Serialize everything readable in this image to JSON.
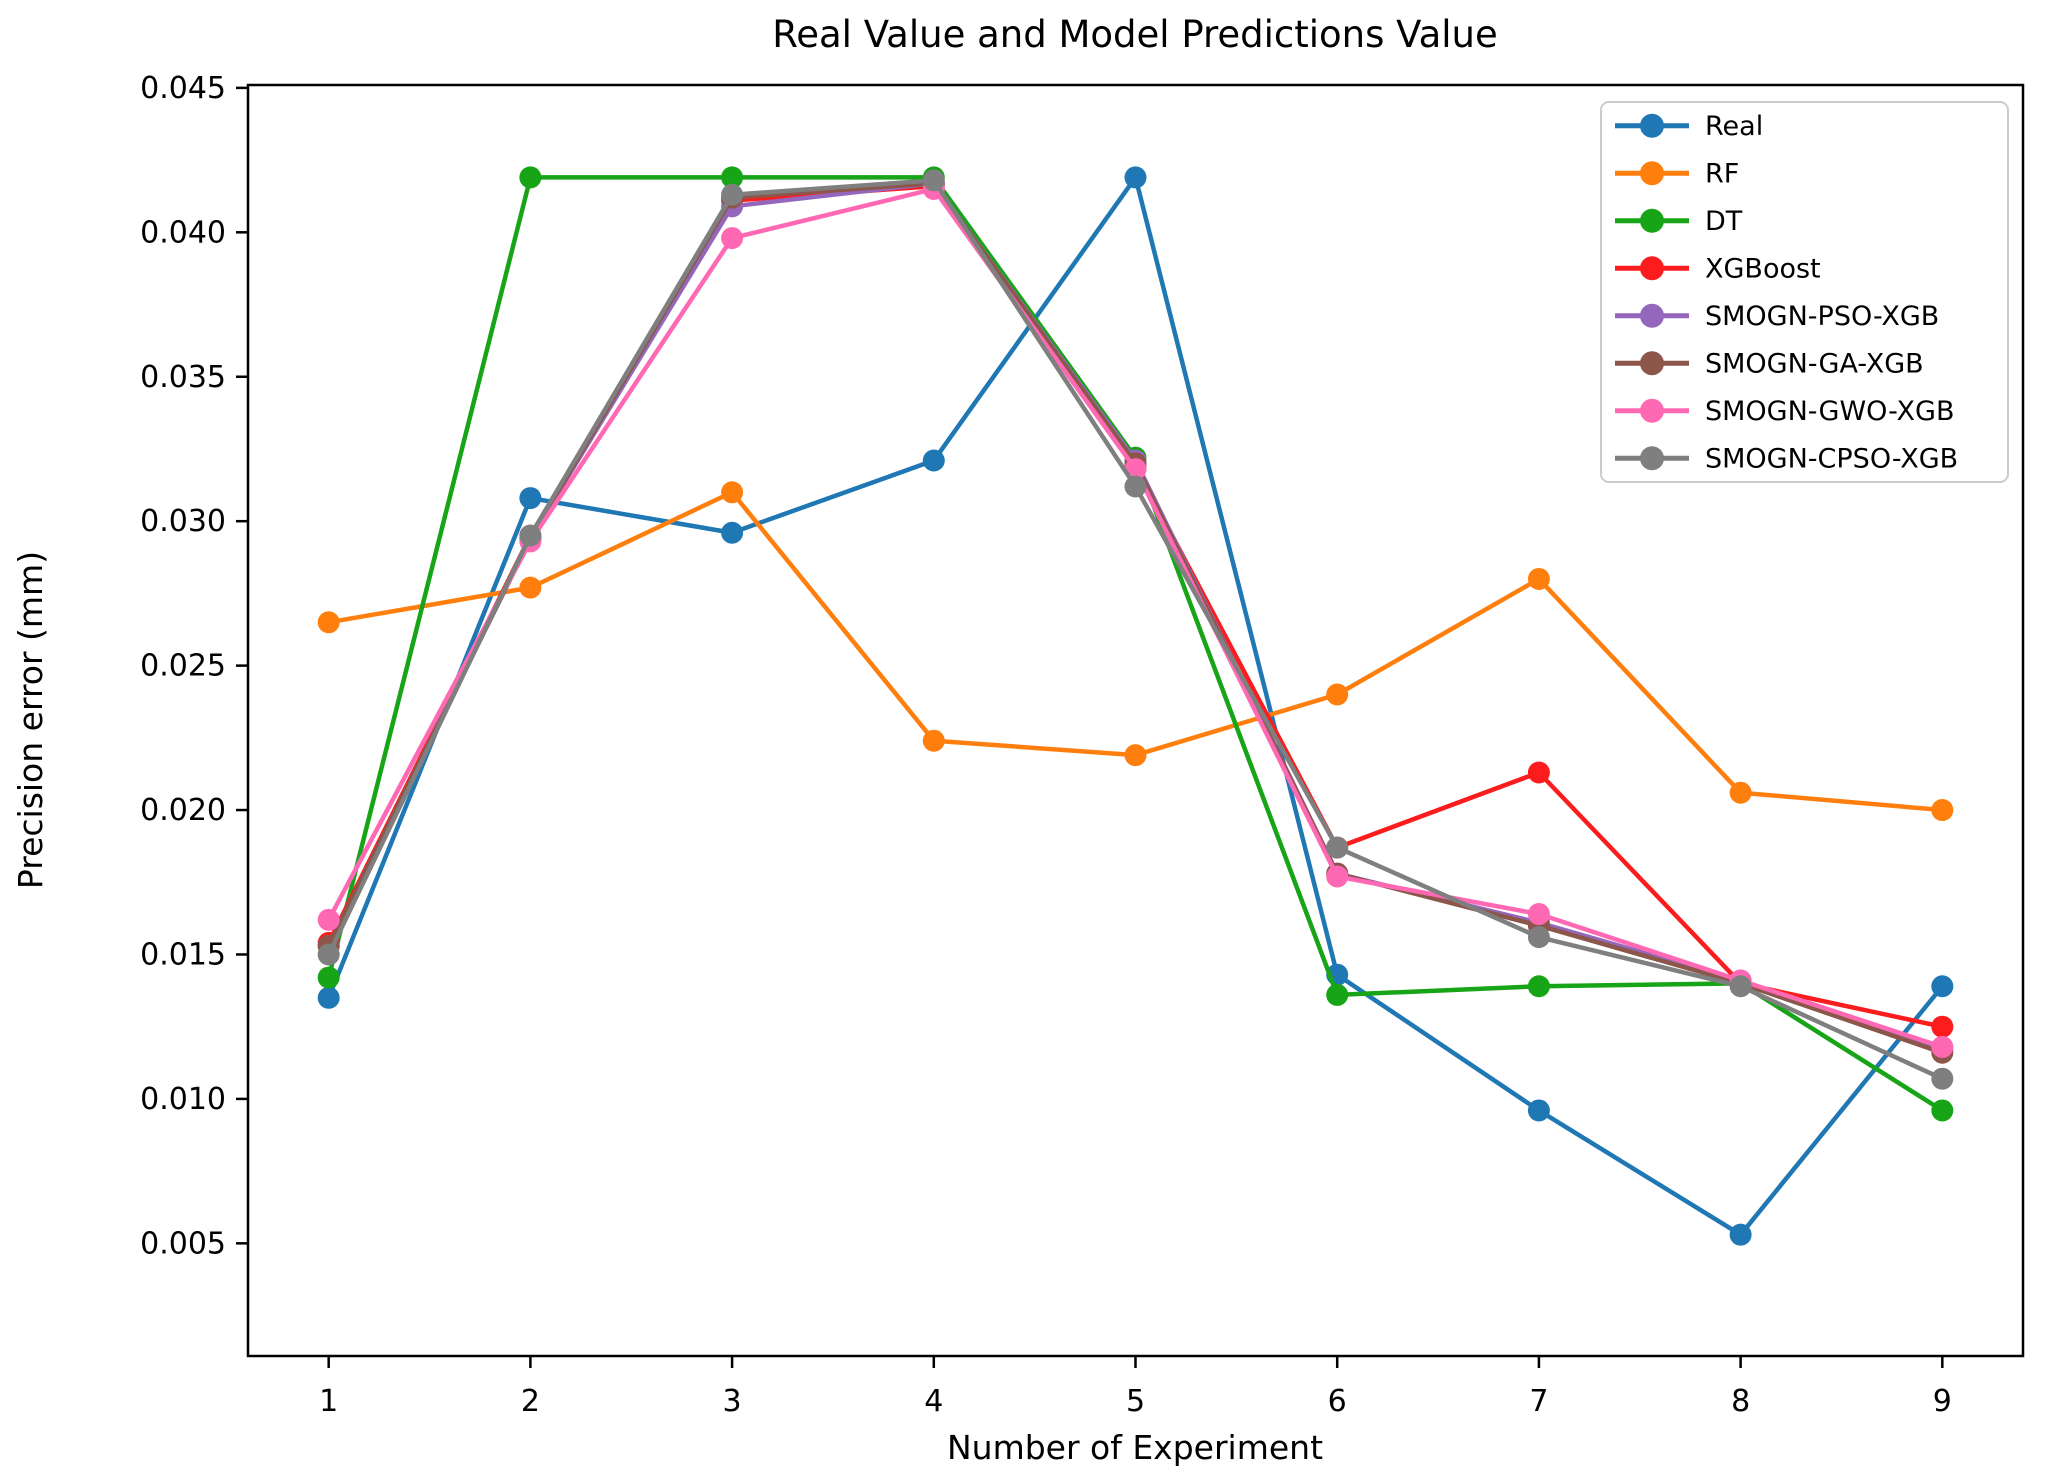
{
  "figure": {
    "title": "Real Value and Model Predictions Value",
    "xlabel": "Number of Experiment",
    "ylabel": "Precision error (mm)"
  },
  "chart_data": {
    "type": "line",
    "title": "Real Value and Model Predictions Value",
    "xlabel": "Number of Experiment",
    "ylabel": "Precision error (mm)",
    "categories": [
      1,
      2,
      3,
      4,
      5,
      6,
      7,
      8,
      9
    ],
    "x_tick_labels": [
      "1",
      "2",
      "3",
      "4",
      "5",
      "6",
      "7",
      "8",
      "9"
    ],
    "y_tick_values": [
      0.005,
      0.01,
      0.015,
      0.02,
      0.025,
      0.03,
      0.035,
      0.04,
      0.045
    ],
    "y_tick_labels": [
      "0.005",
      "0.010",
      "0.015",
      "0.020",
      "0.025",
      "0.030",
      "0.035",
      "0.040",
      "0.045"
    ],
    "xlim": [
      0.6,
      9.4
    ],
    "ylim": [
      0.0011,
      0.0451
    ],
    "grid": false,
    "legend_position": "upper right",
    "series": [
      {
        "name": "Real",
        "color": "#1f77b4",
        "values": [
          0.0135,
          0.0308,
          0.0296,
          0.0321,
          0.0419,
          0.0143,
          0.0096,
          0.0053,
          0.0139
        ]
      },
      {
        "name": "RF",
        "color": "#ff7f0e",
        "values": [
          0.0265,
          0.0277,
          0.031,
          0.0224,
          0.0219,
          0.024,
          0.028,
          0.0206,
          0.02
        ]
      },
      {
        "name": "DT",
        "color": "#17a417",
        "values": [
          0.0142,
          0.0419,
          0.0419,
          0.0419,
          0.0322,
          0.0136,
          0.0139,
          0.014,
          0.0096
        ]
      },
      {
        "name": "XGBoost",
        "color": "#fb1d1d",
        "values": [
          0.0154,
          0.0295,
          0.0411,
          0.0416,
          0.0319,
          0.0187,
          0.0213,
          0.014,
          0.0125
        ]
      },
      {
        "name": "SMOGN-PSO-XGB",
        "color": "#9467bd",
        "values": [
          0.0153,
          0.0294,
          0.0409,
          0.0417,
          0.0321,
          0.0178,
          0.0161,
          0.0141,
          0.0117
        ]
      },
      {
        "name": "SMOGN-GA-XGB",
        "color": "#8c564b",
        "values": [
          0.0153,
          0.0294,
          0.0412,
          0.0417,
          0.032,
          0.0178,
          0.016,
          0.014,
          0.0116
        ]
      },
      {
        "name": "SMOGN-GWO-XGB",
        "color": "#ff69b4",
        "values": [
          0.0162,
          0.0293,
          0.0398,
          0.0415,
          0.0318,
          0.0177,
          0.0164,
          0.0141,
          0.0118
        ]
      },
      {
        "name": "SMOGN-CPSO-XGB",
        "color": "#7f7f7f",
        "values": [
          0.015,
          0.0295,
          0.0413,
          0.0418,
          0.0312,
          0.0187,
          0.0156,
          0.0139,
          0.0107
        ]
      }
    ]
  }
}
